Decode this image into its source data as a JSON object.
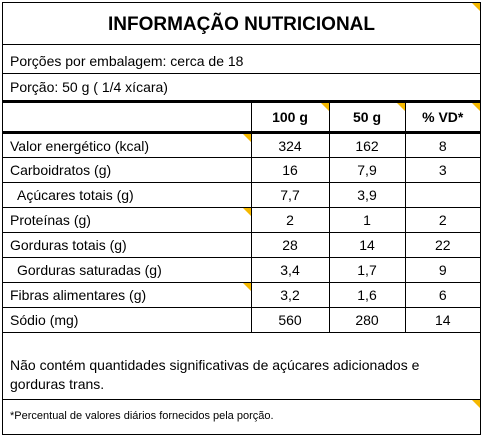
{
  "title": "INFORMAÇÃO NUTRICIONAL",
  "servings_per_package": "Porções por embalagem: cerca de 18",
  "serving_size": "Porção: 50 g ( 1/4 xícara)",
  "columns": [
    "",
    "100 g",
    "50 g",
    "% VD*"
  ],
  "rows": [
    {
      "name": "Valor energético (kcal)",
      "c100": "324",
      "c50": "162",
      "vd": "8"
    },
    {
      "name": "Carboidratos (g)",
      "c100": "16",
      "c50": "7,9",
      "vd": "3"
    },
    {
      "name": "Açúcares totais (g)",
      "c100": "7,7",
      "c50": "3,9",
      "vd": ""
    },
    {
      "name": "Proteínas (g)",
      "c100": "2",
      "c50": "1",
      "vd": "2"
    },
    {
      "name": "Gorduras totais (g)",
      "c100": "28",
      "c50": "14",
      "vd": "22"
    },
    {
      "name": "Gorduras saturadas (g)",
      "c100": "3,4",
      "c50": "1,7",
      "vd": "9"
    },
    {
      "name": "Fibras alimentares (g)",
      "c100": "3,2",
      "c50": "1,6",
      "vd": "6"
    },
    {
      "name": "Sódio (mg)",
      "c100": "560",
      "c50": "280",
      "vd": "14"
    }
  ],
  "note_main": "Não contém quantidades significativas de açúcares adicionados e  gorduras trans.",
  "note_footnote": "*Percentual de valores diários fornecidos pela porção.",
  "accent_color": "#f5b800"
}
